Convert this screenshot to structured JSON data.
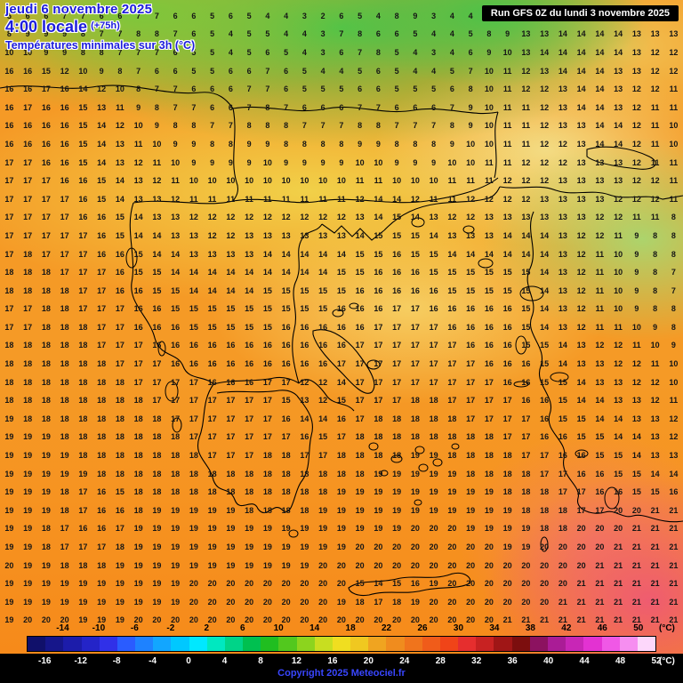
{
  "header": {
    "date_line": "jeudi 6 novembre 2025",
    "time_line": "4:00 locale",
    "offset": "(+75h)",
    "subtitle": "Températures minimales sur 3h (°C)",
    "run_info": "Run GFS 0Z du lundi 3 novembre 2025"
  },
  "footer": {
    "copyright": "Copyright 2025 Meteociel.fr"
  },
  "scale": {
    "unit": "(°C)",
    "top_labels": [
      "-14",
      "-10",
      "-6",
      "-2",
      "2",
      "6",
      "10",
      "14",
      "18",
      "22",
      "26",
      "30",
      "34",
      "38",
      "42",
      "46",
      "50"
    ],
    "bottom_labels": [
      "-16",
      "-12",
      "-8",
      "-4",
      "0",
      "4",
      "8",
      "12",
      "16",
      "20",
      "24",
      "28",
      "32",
      "36",
      "40",
      "44",
      "48",
      "52"
    ],
    "cell_colors": [
      "#10106a",
      "#16168a",
      "#1c1caa",
      "#2424c8",
      "#3030e8",
      "#2a5cff",
      "#1e82ff",
      "#12a6ff",
      "#00c8ff",
      "#00e8ff",
      "#00e8c0",
      "#00d488",
      "#00c050",
      "#20be20",
      "#52c81e",
      "#8cd41e",
      "#c8de20",
      "#f0de20",
      "#f0c820",
      "#f0a420",
      "#f08c1e",
      "#f0741c",
      "#f05c1a",
      "#f04418",
      "#e62e2e",
      "#c82222",
      "#a01616",
      "#7c0e0e",
      "#8c1260",
      "#aa1c96",
      "#c826b6",
      "#e332d2",
      "#f058e6",
      "#f68ef0",
      "#fdd7fb"
    ]
  },
  "map": {
    "grid_rows": [
      "5 6 6 7 7 6 6 7 7 6 6 5 6 5 4 4 3 2 6 5 4 8 9 3 4 4 6 9 13 13 14 14 14 14 12 13 13",
      "8 9 9 9 8 7 7 8 8 7 6 5 4 5 5 4 4 3 7 8 6 6 5 4 4 5 8 9 13 13 14 14 14 14 13 13 13",
      "10 10 9 9 8 8 7 7 7 6 5 5 4 5 6 5 4 3 6 7 8 5 4 3 4 6 9 10 13 14 14 14 14 14 13 12 12",
      "16 16 15 12 10 9 8 7 6 6 5 5 6 6 7 6 5 4 4 5 6 5 4 4 5 7 10 11 12 13 14 14 14 13 13 12 12",
      "16 16 17 16 14 12 10 8 7 7 6 6 6 7 7 6 5 5 5 6 6 5 5 5 6 8 10 11 12 12 13 14 14 13 12 12 11",
      "16 17 16 16 15 13 11 9 8 7 7 6 6 7 8 7 6 6 6 7 7 6 6 6 7 9 10 11 11 12 13 14 14 13 12 11 11",
      "16 16 16 16 15 14 12 10 9 8 8 7 7 8 8 8 7 7 7 8 8 7 7 7 8 9 10 11 11 12 13 13 14 14 12 11 10",
      "16 16 16 16 15 14 13 11 10 9 9 8 8 9 9 8 8 8 8 9 9 8 8 8 9 10 10 11 11 12 12 13 14 14 12 11 10",
      "17 17 16 16 15 14 13 12 11 10 9 9 9 9 10 9 9 9 9 10 10 9 9 9 10 10 11 11 12 12 12 13 13 13 12 11 11",
      "17 17 17 16 16 15 14 13 12 11 10 10 10 10 10 10 10 10 10 11 11 10 10 10 11 11 11 12 12 12 13 13 13 13 12 12 11",
      "17 17 17 17 16 15 14 13 13 12 11 11 11 11 11 11 11 11 11 12 14 14 12 11 11 12 12 12 12 13 13 13 13 12 12 12 11",
      "17 17 17 17 16 16 15 14 13 13 12 12 12 12 12 12 12 12 12 13 14 15 14 13 12 12 13 13 13 13 13 13 12 12 11 11 8",
      "17 17 17 17 17 16 15 14 14 13 13 12 12 13 13 13 13 13 13 14 15 15 15 14 13 13 13 14 14 14 13 12 12 11 9 8 8",
      "17 18 17 17 17 16 16 15 14 14 13 13 13 13 14 14 14 14 14 15 15 16 15 15 14 14 14 14 14 14 13 12 11 10 9 8 8",
      "18 18 18 17 17 17 16 15 15 14 14 14 14 14 14 14 14 14 15 15 16 16 16 15 15 15 15 15 15 14 13 12 11 10 9 8 7",
      "18 18 18 18 17 17 16 16 15 15 14 14 14 14 15 15 15 15 15 16 16 16 16 16 15 15 15 15 15 14 13 12 11 10 9 8 7",
      "17 17 18 18 17 17 17 16 16 15 15 15 15 15 15 15 15 15 16 16 16 17 17 16 16 16 16 16 15 14 13 12 11 10 9 8 8",
      "17 17 18 18 18 17 17 16 16 16 15 15 15 15 15 16 16 16 16 16 17 17 17 17 16 16 16 16 15 14 13 12 11 11 10 9 8",
      "18 18 18 18 18 17 17 17 16 16 16 16 16 16 16 16 16 16 16 17 17 17 17 17 17 16 16 16 15 15 14 13 12 12 11 10 9",
      "18 18 18 18 18 18 17 17 17 16 16 16 16 16 16 16 16 16 17 17 17 17 17 17 17 17 16 16 16 15 14 13 13 12 12 11 10",
      "18 18 18 18 18 18 18 17 17 17 17 16 16 16 17 17 12 12 14 17 17 17 17 17 17 17 17 16 16 15 15 14 13 13 12 12 10",
      "18 18 18 18 18 18 18 18 17 17 17 17 17 17 17 15 13 12 15 17 17 17 18 18 17 17 17 17 16 16 15 14 14 13 13 12 11",
      "19 18 18 18 18 18 18 18 18 17 17 17 17 17 17 16 14 14 16 17 18 18 18 18 18 17 17 17 17 16 15 15 14 14 13 13 12",
      "19 19 19 18 18 18 18 18 18 18 17 17 17 17 17 17 16 15 17 18 18 18 18 18 18 18 18 17 17 16 16 15 15 14 14 13 12",
      "19 19 19 19 18 18 18 18 18 18 18 17 17 17 18 18 17 17 18 18 18 18 19 19 18 18 18 18 17 17 16 16 15 15 14 13 13",
      "19 19 19 19 19 18 18 18 18 18 18 18 18 18 18 18 18 18 18 18 19 19 19 19 19 18 18 18 18 17 17 16 16 15 15 14 14",
      "19 19 19 18 17 16 15 18 18 18 18 18 18 18 18 18 18 18 19 19 19 19 19 19 19 19 19 18 18 18 17 17 16 16 15 15 16",
      "19 19 19 18 17 16 16 18 19 19 19 19 19 18 18 18 18 19 19 19 19 19 19 19 19 19 19 19 18 18 18 17 17 20 20 21 21",
      "19 19 18 17 16 16 17 19 19 19 19 19 19 19 19 19 19 19 19 19 19 19 20 20 20 19 19 19 19 18 18 20 20 20 21 21 21",
      "19 19 18 17 17 17 18 19 19 19 19 19 19 19 19 19 19 19 19 20 20 20 20 20 20 20 20 19 19 20 20 20 20 21 21 21 21",
      "20 19 19 18 18 18 19 19 19 19 19 19 19 19 19 19 19 20 20 20 20 20 20 20 20 20 20 20 20 20 20 20 21 21 21 21 21",
      "19 19 19 19 19 19 19 19 19 19 20 20 20 20 20 20 20 20 20 15 14 15 16 19 20 20 20 20 20 20 20 21 21 21 21 21 21",
      "19 19 19 19 19 19 19 19 19 19 20 20 20 20 20 20 20 20 19 18 17 18 19 20 20 20 20 20 20 20 21 21 21 21 21 21 21",
      "19 20 20 20 19 19 19 20 20 20 20 20 20 20 20 20 20 20 20 20 20 20 20 20 20 20 20 21 21 21 21 21 21 21 21 21 21"
    ]
  }
}
